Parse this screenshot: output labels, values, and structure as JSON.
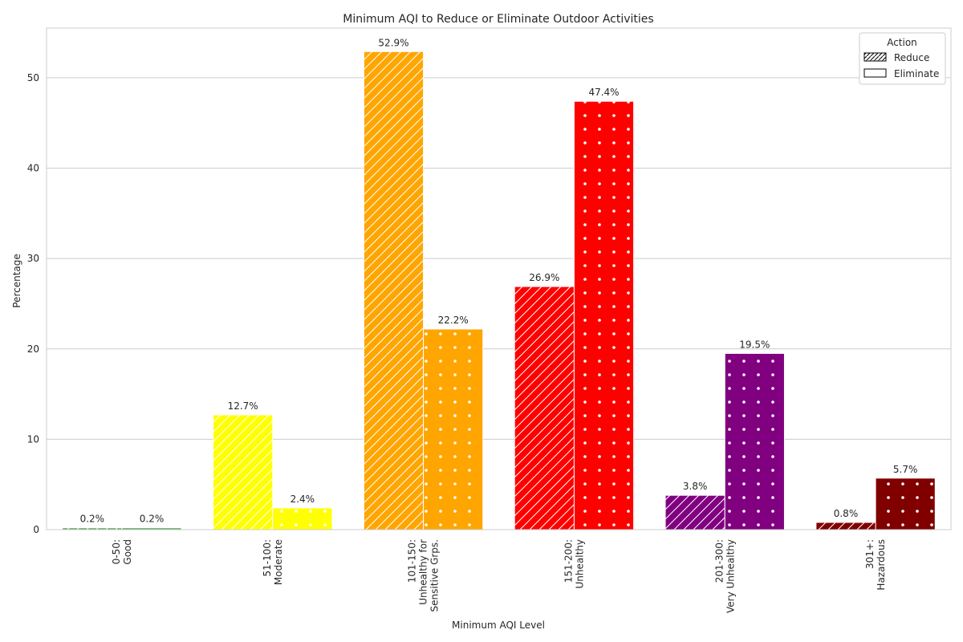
{
  "chart_data": {
    "type": "bar",
    "title": "Minimum AQI to Reduce or Eliminate Outdoor Activities",
    "xlabel": "Minimum AQI Level",
    "ylabel": "Percentage",
    "ylim": [
      0,
      55.5
    ],
    "yticks": [
      0,
      10,
      20,
      30,
      40,
      50
    ],
    "grid": "horizontal",
    "categories": [
      {
        "lines": [
          "0-50:",
          "Good"
        ],
        "color": "#5aa05a"
      },
      {
        "lines": [
          "51-100:",
          "Moderate"
        ],
        "color": "#ffff00"
      },
      {
        "lines": [
          "101-150:",
          "Unhealthy for",
          "Sensitive Grps."
        ],
        "color": "#ffa500"
      },
      {
        "lines": [
          "151-200:",
          "Unhealthy"
        ],
        "color": "#ff0000"
      },
      {
        "lines": [
          "201-300:",
          "Very Unhealthy"
        ],
        "color": "#800080"
      },
      {
        "lines": [
          "301+:",
          "Hazardous"
        ],
        "color": "#800000"
      }
    ],
    "series": [
      {
        "name": "Reduce",
        "pattern": "hatch",
        "values": [
          0.2,
          12.7,
          52.9,
          26.9,
          3.8,
          0.8
        ],
        "labels": [
          "0.2%",
          "12.7%",
          "52.9%",
          "26.9%",
          "3.8%",
          "0.8%"
        ]
      },
      {
        "name": "Eliminate",
        "pattern": "dots",
        "values": [
          0.2,
          2.4,
          22.2,
          47.4,
          19.5,
          5.7
        ],
        "labels": [
          "0.2%",
          "2.4%",
          "22.2%",
          "47.4%",
          "19.5%",
          "5.7%"
        ]
      }
    ],
    "legend": {
      "title": "Action",
      "placement": "top-right"
    }
  }
}
